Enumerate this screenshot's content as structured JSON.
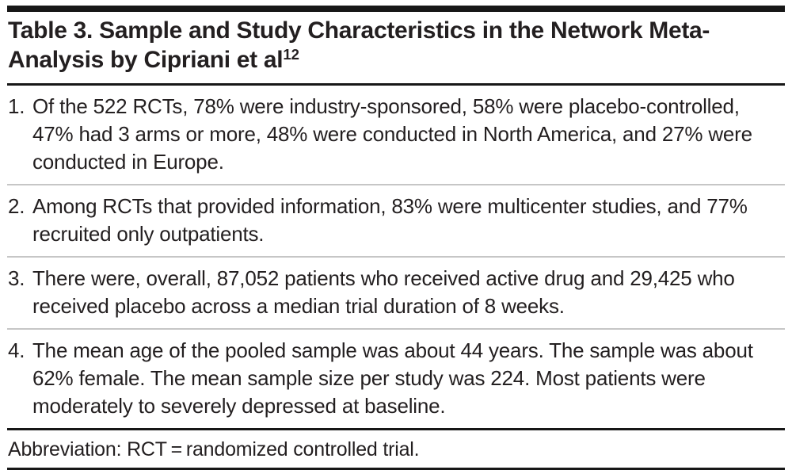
{
  "table": {
    "title": {
      "text": "Table 3. Sample and Study Characteristics in the Network Meta-Analysis by Cipriani et al",
      "citation_superscript": "12"
    },
    "items": [
      {
        "number": "1.",
        "text": "Of the 522 RCTs, 78% were industry-sponsored, 58% were placebo-controlled, 47% had 3 arms or more, 48% were conducted in North America, and 27% were conducted in Europe."
      },
      {
        "number": "2.",
        "text": "Among RCTs that provided information, 83% were multicenter studies, and 77% recruited only outpatients."
      },
      {
        "number": "3.",
        "text": "There were, overall, 87,052 patients who received active drug and 29,425 who received placebo across a median trial duration of 8 weeks."
      },
      {
        "number": "4.",
        "text": "The mean age of the pooled sample was about 44 years. The sample was about 62% female. The mean sample size per study was 224. Most patients were moderately to severely depressed at baseline."
      }
    ],
    "footnote": "Abbreviation: RCT = randomized controlled trial."
  },
  "colors": {
    "text": "#231f20",
    "rule_dark": "#171717",
    "rule_light": "#c6c6c6",
    "background": "#ffffff"
  }
}
